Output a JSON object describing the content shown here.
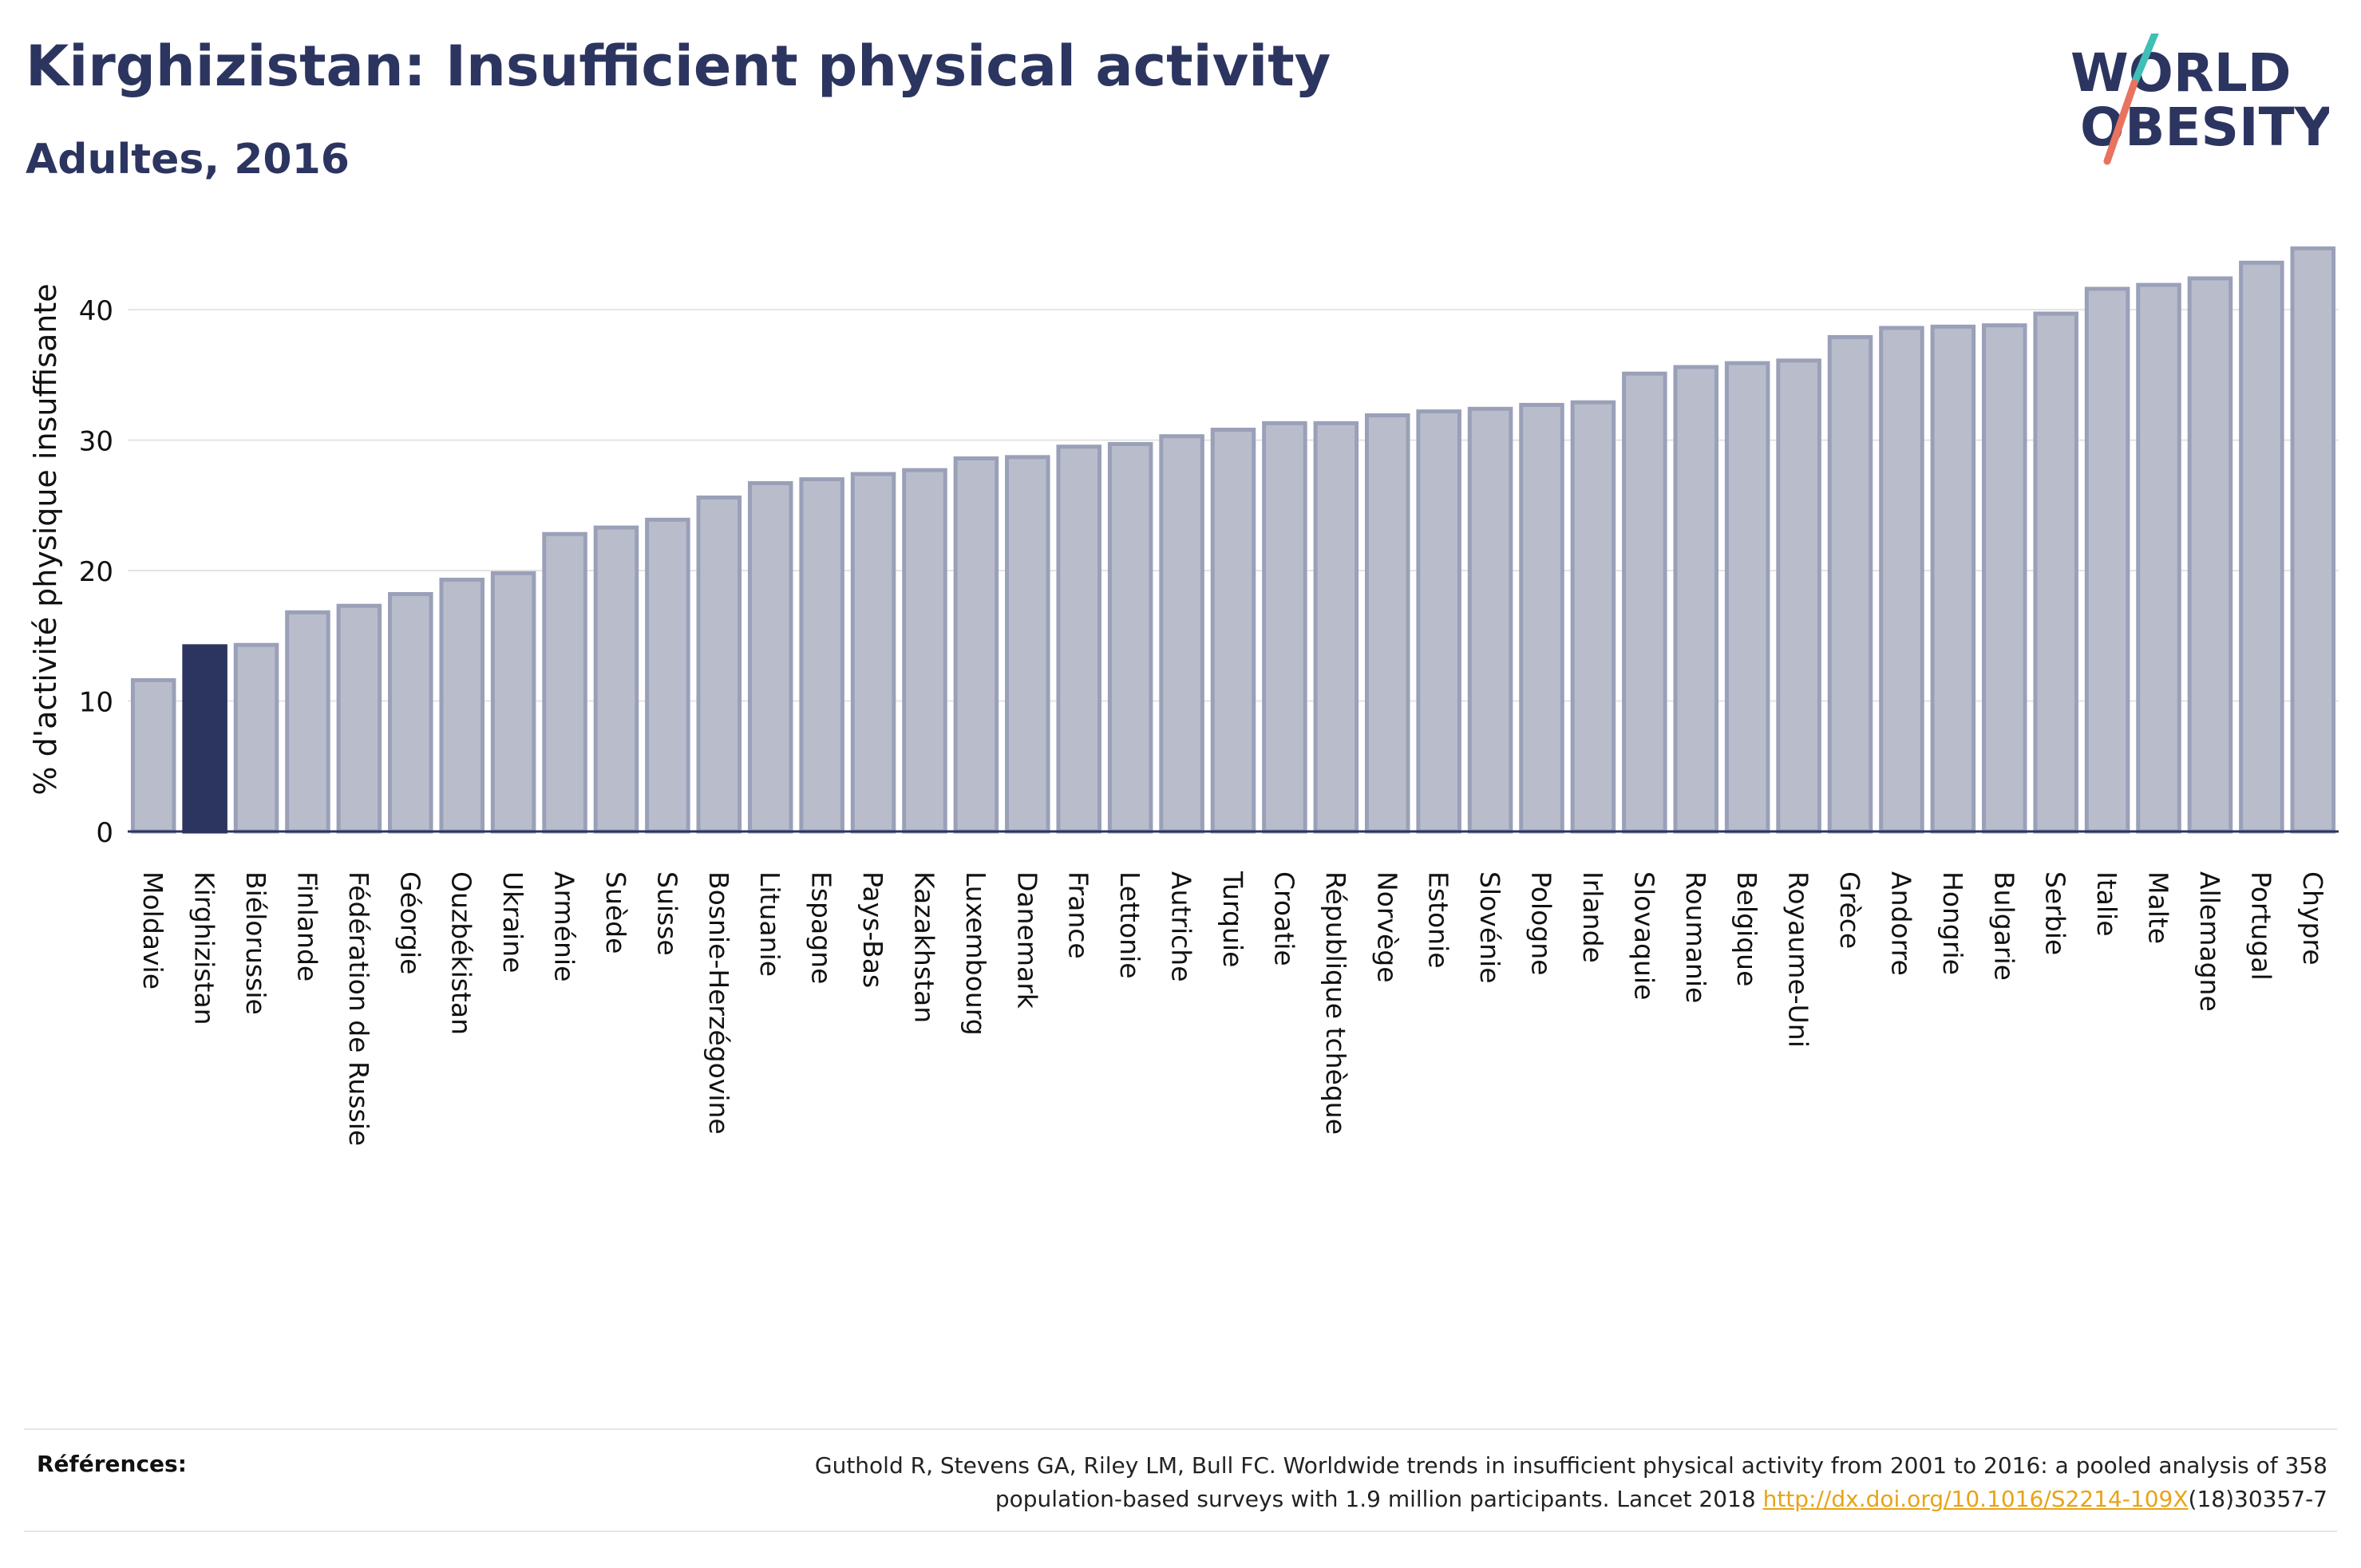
{
  "header": {
    "title": "Kirghizistan: Insufficient physical activity",
    "subtitle": "Adultes, 2016"
  },
  "logo": {
    "line1": "WORLD",
    "line2": "OBESITY",
    "icon": "world-obesity-slash-logo"
  },
  "colors": {
    "bar": "#b9bdcb",
    "bar_border": "#9aa0b8",
    "highlight": "#2c3560",
    "title": "#2c3560",
    "link": "#e8a317"
  },
  "chart_data": {
    "type": "bar",
    "ylabel": "% d'activité physique insuffisante",
    "xlabel": "",
    "ylim": [
      0,
      46
    ],
    "yticks": [
      0,
      10,
      20,
      30,
      40
    ],
    "grid": true,
    "highlight": "Kirghizistan",
    "categories": [
      "Moldavie",
      "Kirghizistan",
      "Biélorussie",
      "Finlande",
      "Fédération de Russie",
      "Géorgie",
      "Ouzbékistan",
      "Ukraine",
      "Arménie",
      "Suède",
      "Suisse",
      "Bosnie-Herzégovine",
      "Lituanie",
      "Espagne",
      "Pays-Bas",
      "Kazakhstan",
      "Luxembourg",
      "Danemark",
      "France",
      "Lettonie",
      "Autriche",
      "Turquie",
      "Croatie",
      "République tchèque",
      "Norvège",
      "Estonie",
      "Slovénie",
      "Pologne",
      "Irlande",
      "Slovaquie",
      "Roumanie",
      "Belgique",
      "Royaume-Uni",
      "Grèce",
      "Andorre",
      "Hongrie",
      "Bulgarie",
      "Serbie",
      "Italie",
      "Malte",
      "Allemagne",
      "Portugal",
      "Chypre"
    ],
    "values": [
      11.6,
      14.2,
      14.3,
      16.8,
      17.3,
      18.2,
      19.3,
      19.8,
      22.8,
      23.3,
      23.9,
      25.6,
      26.7,
      27.0,
      27.4,
      27.7,
      28.6,
      28.7,
      29.5,
      29.7,
      30.3,
      30.8,
      31.3,
      31.3,
      31.9,
      32.2,
      32.4,
      32.7,
      32.9,
      35.1,
      35.6,
      35.9,
      36.1,
      37.9,
      38.6,
      38.7,
      38.8,
      39.7,
      41.6,
      41.9,
      42.4,
      43.6,
      44.7
    ]
  },
  "references": {
    "label": "Références:",
    "line1": "Guthold R, Stevens GA, Riley LM, Bull FC. Worldwide trends in insufficient physical activity from 2001 to 2016: a pooled analysis of 358",
    "line2_prefix": "population-based surveys with 1.9 million participants. Lancet 2018 ",
    "link": "http://dx.doi.org/10.1016/S2214-109X",
    "line2_suffix": "(18)30357-7"
  }
}
